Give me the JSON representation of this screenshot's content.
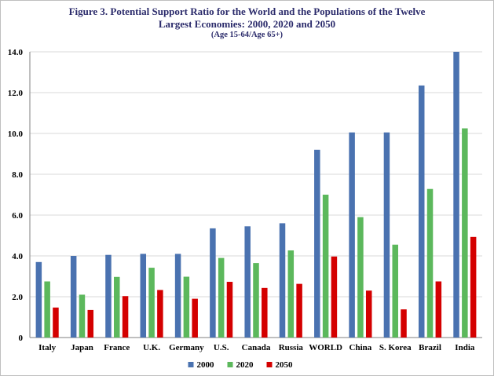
{
  "title_lines": [
    "Figure 3. Potential Support Ratio for the World and the Populations of the Twelve",
    "Largest Economies: 2000, 2020 and 2050"
  ],
  "subtitle": "(Age 15-64/Age 65+)",
  "chart_data": {
    "type": "bar",
    "title": "Figure 3. Potential Support Ratio for the World and the Populations of the Twelve Largest Economies: 2000, 2020 and 2050",
    "subtitle": "(Age 15-64/Age 65+)",
    "categories": [
      "Italy",
      "Japan",
      "France",
      "U.K.",
      "Germany",
      "U.S.",
      "Canada",
      "Russia",
      "WORLD",
      "China",
      "S. Korea",
      "Brazil",
      "India"
    ],
    "series": [
      {
        "name": "2000",
        "color": "#4a72b0",
        "values": [
          3.7,
          4.0,
          4.05,
          4.1,
          4.1,
          5.35,
          5.45,
          5.6,
          9.2,
          10.05,
          10.05,
          12.35,
          14.0
        ]
      },
      {
        "name": "2020",
        "color": "#5cb85c",
        "values": [
          2.75,
          2.1,
          2.97,
          3.42,
          2.98,
          3.9,
          3.65,
          4.27,
          7.0,
          5.9,
          4.55,
          7.28,
          10.25
        ]
      },
      {
        "name": "2050",
        "color": "#d40000",
        "values": [
          1.47,
          1.35,
          2.03,
          2.33,
          1.9,
          2.73,
          2.43,
          2.63,
          3.97,
          2.3,
          1.38,
          2.75,
          4.93
        ]
      }
    ],
    "yticks": [
      "0",
      "2.0",
      "4.0",
      "6.0",
      "8.0",
      "10.0",
      "12.0",
      "14.0"
    ],
    "ylim": [
      0,
      14
    ],
    "grid": true,
    "legend_position": "bottom"
  }
}
